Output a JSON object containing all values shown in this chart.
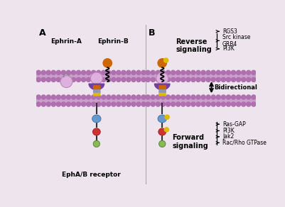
{
  "bg_color": "#ede4ed",
  "membrane_color": "#c9a0c9",
  "membrane_dot_color": "#b070b0",
  "colors": {
    "purple_dark": "#7040a0",
    "purple_light": "#ddb0dd",
    "orange_ball": "#cc6600",
    "yellow_dot": "#ddbb00",
    "blue_oval": "#6699cc",
    "red_heart": "#cc3333",
    "green_circle": "#88bb55",
    "stem_color": "#333333"
  },
  "labels": {
    "A": "A",
    "B": "B",
    "ephrin_a": "Ephrin-A",
    "ephrin_b": "Ephrin-B",
    "receptor": "EphA/B receptor",
    "reverse": "Reverse\nsignaling",
    "forward": "Forward\nsignaling",
    "bidirectional": "Bidirectional",
    "reverse_items": [
      "RGS3",
      "Src kinase\nGRB4",
      "PI3K"
    ],
    "forward_items": [
      "Ras-GAP",
      "PI3K",
      "Jak2",
      "Rac/Rho GTPase"
    ]
  }
}
